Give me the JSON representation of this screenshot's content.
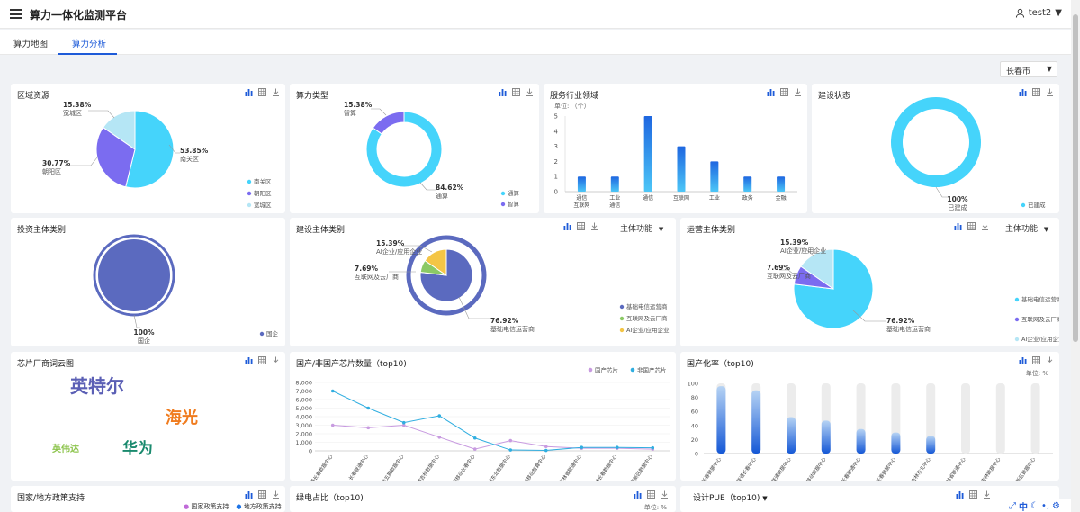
{
  "app": {
    "title": "算力一体化监测平台",
    "user": "test2"
  },
  "tabs": [
    {
      "label": "算力地图"
    },
    {
      "label": "算力分析"
    }
  ],
  "city": {
    "value": "长春市"
  },
  "cards": {
    "region": {
      "title": "区域资源"
    },
    "type": {
      "title": "算力类型"
    },
    "industry": {
      "title": "服务行业领域",
      "unit": "单位: （个）"
    },
    "build_status": {
      "title": "建设状态"
    },
    "invest": {
      "title": "投资主体类别"
    },
    "builder": {
      "title": "建设主体类别",
      "dropdown": "主体功能"
    },
    "operator": {
      "title": "运营主体类别",
      "dropdown": "主体功能"
    },
    "wordcloud": {
      "title": "芯片厂商词云图",
      "words": [
        "英特尔",
        "海光",
        "英伟达",
        "华为"
      ]
    },
    "chips": {
      "title": "国产/非国产芯片数量（top10)"
    },
    "localization": {
      "title": "国产化率（top10)",
      "unit": "单位: %"
    },
    "policy": {
      "title": "国家/地方政策支持",
      "legend": [
        "国家政策支持",
        "地方政策支持"
      ]
    },
    "green": {
      "title": "绿电占比（top10)",
      "unit": "单位: %"
    },
    "pue": {
      "title": "设计PUE（top10)"
    }
  },
  "colors": {
    "cyan": "#45d4fb",
    "purple": "#7b6cf0",
    "lightblue": "#b5e6f5",
    "indigo": "#5b6abf",
    "green": "#8bc965",
    "yellow": "#f4c545",
    "blue": "#1e74e6",
    "lavender": "#c89be0",
    "brand": "#1e5bd8"
  },
  "chart_data": [
    {
      "type": "pie",
      "title": "区域资源",
      "slices": [
        {
          "label": "南关区",
          "value": 53.85,
          "text": "53.85%"
        },
        {
          "label": "朝阳区",
          "value": 30.77,
          "text": "30.77%"
        },
        {
          "label": "宽城区",
          "value": 15.38,
          "text": "15.38%"
        }
      ],
      "legend": [
        "南关区",
        "朝阳区",
        "宽城区"
      ]
    },
    {
      "type": "pie",
      "title": "算力类型",
      "slices": [
        {
          "label": "通算",
          "value": 84.62,
          "text": "84.62%"
        },
        {
          "label": "智算",
          "value": 15.38,
          "text": "15.38%"
        }
      ],
      "legend": [
        "通算",
        "智算"
      ]
    },
    {
      "type": "bar",
      "title": "服务行业领域",
      "categories": [
        "通信、互联网",
        "工业、通信",
        "通信",
        "互联网",
        "工业",
        "政务",
        "金融"
      ],
      "values": [
        1,
        1,
        5,
        3,
        2,
        1,
        1
      ],
      "ylim": [
        0,
        5
      ],
      "yticks": [
        "0",
        "1",
        "2",
        "3",
        "4",
        "5"
      ]
    },
    {
      "type": "pie",
      "title": "建设状态",
      "slices": [
        {
          "label": "已建成",
          "value": 100,
          "text": "100%"
        }
      ],
      "legend": [
        "已建成"
      ]
    },
    {
      "type": "pie",
      "title": "投资主体类别",
      "slices": [
        {
          "label": "国企",
          "value": 100,
          "text": "100%"
        }
      ],
      "legend": [
        "国企"
      ]
    },
    {
      "type": "pie",
      "title": "建设主体类别",
      "slices": [
        {
          "label": "基础电信运营商",
          "value": 76.92,
          "text": "76.92%"
        },
        {
          "label": "互联网及云厂商",
          "value": 7.69,
          "text": "7.69%"
        },
        {
          "label": "AI企业/应用企业",
          "value": 15.39,
          "text": "15.39%"
        }
      ],
      "legend": [
        "基础电信运营商",
        "互联网及云厂商",
        "AI企业/应用企业"
      ]
    },
    {
      "type": "pie",
      "title": "运营主体类别",
      "slices": [
        {
          "label": "基础电信运营商",
          "value": 76.92,
          "text": "76.92%"
        },
        {
          "label": "互联网及云厂商",
          "value": 7.69,
          "text": "7.69%"
        },
        {
          "label": "AI企业/应用企业",
          "value": 15.39,
          "text": "15.39%"
        }
      ],
      "legend": [
        "基础电信运营商",
        "互联网及云厂商",
        "AI企业/应用企业"
      ]
    },
    {
      "type": "line",
      "title": "国产/非国产芯片数量（top10)",
      "categories": [
        "中国移动 联通长春 数据中心",
        "长春 联通 中心",
        "吉林移动 五期 数据中心",
        "中国联通 吉林 数据中心",
        "中国移动 长春 中心",
        "中国联通 吉林 东北 数据中心",
        "吉林移动 智算中心",
        "吉林省 联通 中心",
        "吉林 长春 数据中心",
        "长春新区 数据中心"
      ],
      "series": [
        {
          "name": "国产芯片",
          "values": [
            3000,
            2700,
            3000,
            1600,
            200,
            1200,
            500,
            300,
            300,
            200
          ]
        },
        {
          "name": "非国产芯片",
          "values": [
            7000,
            5000,
            3300,
            4100,
            1500,
            100,
            50,
            400,
            400,
            350
          ]
        }
      ],
      "ylim": [
        0,
        8000
      ],
      "yticks": [
        "0",
        "1,000",
        "2,000",
        "3,000",
        "4,000",
        "5,000",
        "6,000",
        "7,000",
        "8,000"
      ]
    },
    {
      "type": "bar",
      "title": "国产化率（top10)",
      "categories": [
        "吉林省 长春 数据中心",
        "中国移动 联通 长春 中心",
        "长春 联通 数据 中心",
        "吉林移动 数据中心",
        "长春 联通 中心",
        "中国联通 长春 数据 中心",
        "中国联通 吉林 东北 中心",
        "吉林省 联通 中心",
        "中国联通 吉林 数据中心",
        "长春新区 数据中心"
      ],
      "values": [
        96,
        90,
        52,
        47,
        35,
        30,
        25,
        0,
        0,
        0
      ],
      "ylim": [
        0,
        100
      ],
      "yticks": [
        "0",
        "20",
        "40",
        "60",
        "80",
        "100"
      ]
    }
  ]
}
